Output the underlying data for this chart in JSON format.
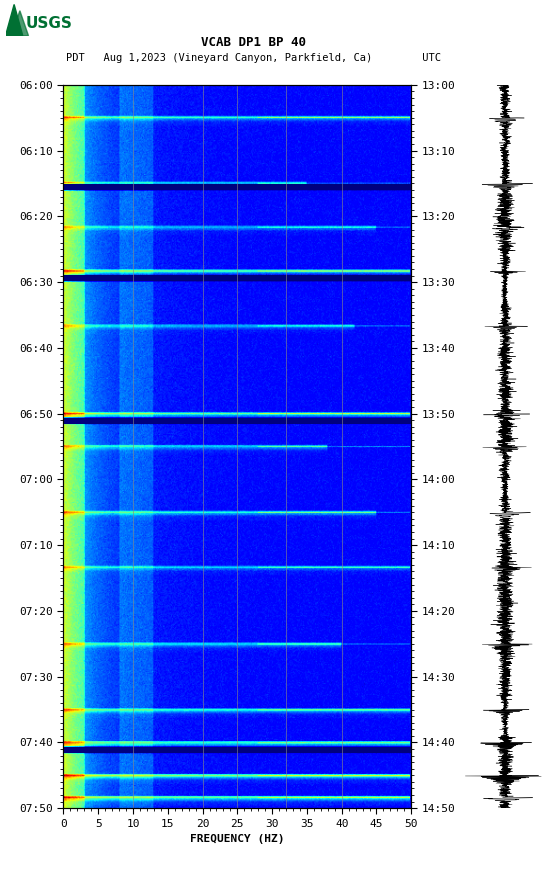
{
  "title_line1": "VCAB DP1 BP 40",
  "title_line2": "PDT   Aug 1,2023 (Vineyard Canyon, Parkfield, Ca)        UTC",
  "xlabel": "FREQUENCY (HZ)",
  "freq_min": 0,
  "freq_max": 50,
  "left_yticks": [
    "06:00",
    "06:10",
    "06:20",
    "06:30",
    "06:40",
    "06:50",
    "07:00",
    "07:10",
    "07:20",
    "07:30",
    "07:40",
    "07:50"
  ],
  "right_yticks": [
    "13:00",
    "13:10",
    "13:20",
    "13:30",
    "13:40",
    "13:50",
    "14:00",
    "14:10",
    "14:20",
    "14:30",
    "14:40",
    "14:50"
  ],
  "xticks": [
    0,
    5,
    10,
    15,
    20,
    25,
    30,
    35,
    40,
    45,
    50
  ],
  "vertical_lines_freq": [
    10,
    20,
    25,
    32,
    40
  ],
  "vertical_line_color": "#888888",
  "background_color": "#ffffff",
  "usgs_logo_color": "#007033",
  "fig_width": 5.52,
  "fig_height": 8.93,
  "spectrogram_seed": 42,
  "n_time": 660,
  "n_freq": 370,
  "event_rows": [
    30,
    90,
    130,
    170,
    220,
    300,
    330,
    390,
    440,
    510,
    570,
    600,
    630,
    650
  ],
  "event_freq_extents": [
    50,
    35,
    45,
    50,
    42,
    50,
    38,
    45,
    50,
    40,
    50,
    50,
    50,
    50
  ],
  "event_strengths": [
    4.0,
    3.5,
    3.0,
    4.5,
    3.0,
    5.0,
    3.5,
    4.0,
    3.0,
    3.5,
    4.5,
    5.0,
    5.5,
    6.0
  ],
  "dark_rows": [
    92,
    95,
    175,
    178,
    305,
    308,
    605,
    608
  ],
  "wave_seed": 123
}
